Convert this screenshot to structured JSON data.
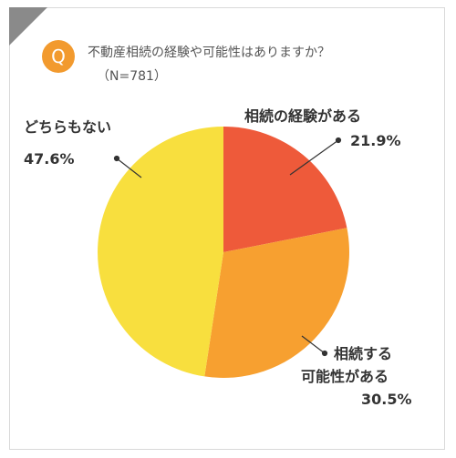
{
  "header": {
    "badge": "Q",
    "title": "不動産相続の経験や可能性はありますか？",
    "subtitle": "（N=781）"
  },
  "colors": {
    "badge": "#f29a2e",
    "corner": "#8a8a8a",
    "slice_experienced": "#ee5a3a",
    "slice_possible": "#f7a030",
    "slice_neither": "#f8df3e"
  },
  "chart_data": {
    "type": "pie",
    "title": "不動産相続の経験や可能性はありますか？",
    "n": "N=781",
    "slices": [
      {
        "label_lines": [
          "相続の経験がある"
        ],
        "value": 21.9,
        "value_text": "21.9%"
      },
      {
        "label_lines": [
          "相続する",
          "可能性がある"
        ],
        "value": 30.5,
        "value_text": "30.5%"
      },
      {
        "label_lines": [
          "どちらもない"
        ],
        "value": 47.6,
        "value_text": "47.6%"
      }
    ]
  }
}
